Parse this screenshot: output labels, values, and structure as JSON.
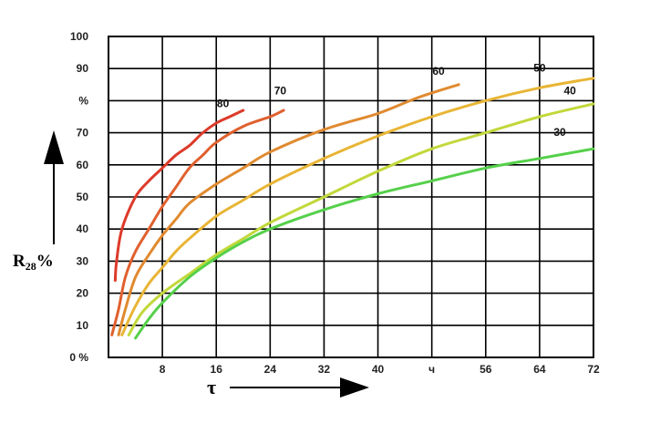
{
  "chart_data": {
    "type": "line",
    "xlabel": "τ",
    "ylabel": {
      "main": "R",
      "sub": "28",
      "unit": "%"
    },
    "xlim": [
      0,
      72
    ],
    "ylim": [
      0,
      100
    ],
    "grid": true,
    "x_ticks": [
      {
        "value": 8,
        "label": "8"
      },
      {
        "value": 16,
        "label": "16"
      },
      {
        "value": 24,
        "label": "24"
      },
      {
        "value": 32,
        "label": "32"
      },
      {
        "value": 40,
        "label": "40"
      },
      {
        "value": 48,
        "label": "ч"
      },
      {
        "value": 56,
        "label": "56"
      },
      {
        "value": 64,
        "label": "64"
      },
      {
        "value": 72,
        "label": "72"
      }
    ],
    "y_ticks": [
      {
        "value": 0,
        "label": "0 %"
      },
      {
        "value": 10,
        "label": "10"
      },
      {
        "value": 20,
        "label": "20"
      },
      {
        "value": 30,
        "label": "30"
      },
      {
        "value": 40,
        "label": "40"
      },
      {
        "value": 50,
        "label": "50"
      },
      {
        "value": 60,
        "label": "60"
      },
      {
        "value": 70,
        "label": "70"
      },
      {
        "value": 80,
        "label": "%"
      },
      {
        "value": 90,
        "label": "90"
      },
      {
        "value": 100,
        "label": "100"
      }
    ],
    "series": [
      {
        "name": "80",
        "color": "#dd3a2a",
        "points": [
          [
            1,
            24
          ],
          [
            1.2,
            30
          ],
          [
            2,
            40
          ],
          [
            4,
            50
          ],
          [
            6,
            55
          ],
          [
            8,
            59
          ],
          [
            10,
            63
          ],
          [
            12,
            66
          ],
          [
            14,
            70
          ],
          [
            16,
            73
          ],
          [
            18,
            75
          ],
          [
            20,
            77
          ]
        ]
      },
      {
        "name": "70",
        "color": "#e0602e",
        "points": [
          [
            0.5,
            7
          ],
          [
            1.5,
            15
          ],
          [
            2.5,
            25
          ],
          [
            4,
            33
          ],
          [
            6,
            40
          ],
          [
            8,
            47
          ],
          [
            10,
            53
          ],
          [
            12,
            59
          ],
          [
            14,
            63
          ],
          [
            16,
            67
          ],
          [
            20,
            72
          ],
          [
            24,
            75
          ],
          [
            26,
            77
          ]
        ]
      },
      {
        "name": "60",
        "color": "#e08a30",
        "points": [
          [
            1.5,
            7
          ],
          [
            2.5,
            15
          ],
          [
            4,
            25
          ],
          [
            6,
            32
          ],
          [
            8,
            38
          ],
          [
            10,
            43
          ],
          [
            12,
            48
          ],
          [
            16,
            54
          ],
          [
            20,
            59
          ],
          [
            24,
            64
          ],
          [
            32,
            71
          ],
          [
            40,
            76
          ],
          [
            46,
            81
          ],
          [
            52,
            85
          ]
        ]
      },
      {
        "name": "50",
        "color": "#e8b535",
        "points": [
          [
            2,
            7
          ],
          [
            4,
            16
          ],
          [
            6,
            23
          ],
          [
            8,
            28
          ],
          [
            10,
            33
          ],
          [
            12,
            37
          ],
          [
            16,
            44
          ],
          [
            20,
            49
          ],
          [
            24,
            54
          ],
          [
            32,
            62
          ],
          [
            40,
            69
          ],
          [
            48,
            75
          ],
          [
            56,
            80
          ],
          [
            64,
            84
          ],
          [
            72,
            87
          ]
        ]
      },
      {
        "name": "40",
        "color": "#c2d83a",
        "points": [
          [
            3,
            7
          ],
          [
            5,
            14
          ],
          [
            8,
            20
          ],
          [
            12,
            26
          ],
          [
            16,
            32
          ],
          [
            20,
            37
          ],
          [
            24,
            42
          ],
          [
            32,
            50
          ],
          [
            40,
            58
          ],
          [
            48,
            65
          ],
          [
            56,
            70
          ],
          [
            64,
            75
          ],
          [
            72,
            79
          ]
        ]
      },
      {
        "name": "30",
        "color": "#55d04a",
        "points": [
          [
            4,
            6
          ],
          [
            6,
            12
          ],
          [
            8,
            17
          ],
          [
            12,
            25
          ],
          [
            16,
            31
          ],
          [
            20,
            36
          ],
          [
            24,
            40
          ],
          [
            32,
            46
          ],
          [
            40,
            51
          ],
          [
            48,
            55
          ],
          [
            56,
            59
          ],
          [
            64,
            62
          ],
          [
            72,
            65
          ]
        ]
      }
    ],
    "curve_labels": [
      {
        "text": "80",
        "x": 17,
        "y": 78
      },
      {
        "text": "70",
        "x": 25.5,
        "y": 82
      },
      {
        "text": "60",
        "x": 49,
        "y": 88
      },
      {
        "text": "50",
        "x": 64,
        "y": 89
      },
      {
        "text": "40",
        "x": 68.5,
        "y": 82
      },
      {
        "text": "30",
        "x": 67,
        "y": 69
      }
    ]
  }
}
